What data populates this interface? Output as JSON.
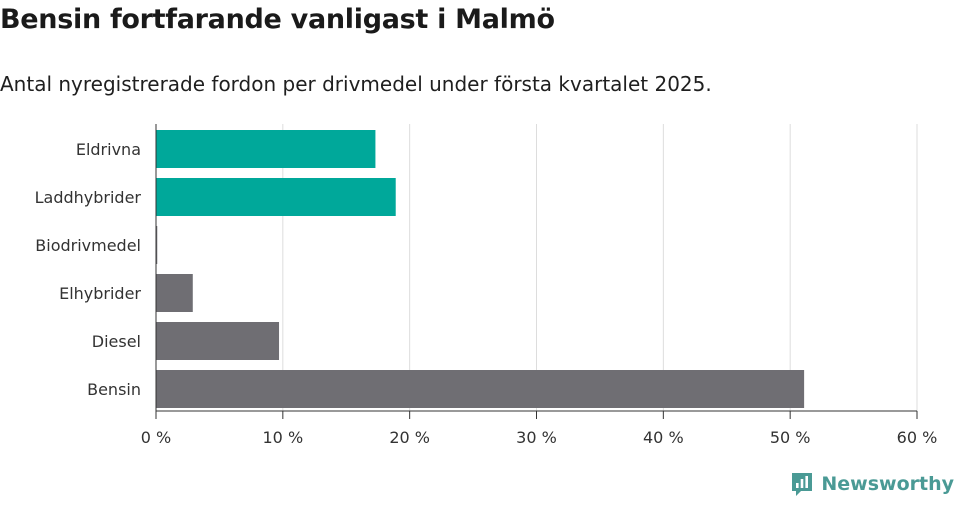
{
  "header": {
    "title": "Bensin fortfarande vanligast i Malmö",
    "subtitle": "Antal nyregistrerade fordon per drivmedel under första kvartalet 2025."
  },
  "brand": {
    "name": "Newsworthy",
    "icon": "newsworthy-logo-icon"
  },
  "colors": {
    "highlight": "#00a89a",
    "default": "#6f6e73",
    "grid": "#dddddd",
    "axis": "#333333",
    "brand": "#4a9a95"
  },
  "chart_data": {
    "type": "bar",
    "orientation": "horizontal",
    "categories": [
      "Eldrivna",
      "Laddhybrider",
      "Biodrivmedel",
      "Elhybrider",
      "Diesel",
      "Bensin"
    ],
    "values": [
      17.3,
      18.9,
      0.1,
      2.9,
      9.7,
      51.1
    ],
    "highlighted": [
      true,
      true,
      false,
      false,
      false,
      false
    ],
    "unit": "%",
    "xlim": [
      0,
      60
    ],
    "xticks": [
      0,
      10,
      20,
      30,
      40,
      50,
      60
    ],
    "xtick_labels": [
      "0 %",
      "10 %",
      "20 %",
      "30 %",
      "40 %",
      "50 %",
      "60 %"
    ],
    "grid": "vertical"
  }
}
